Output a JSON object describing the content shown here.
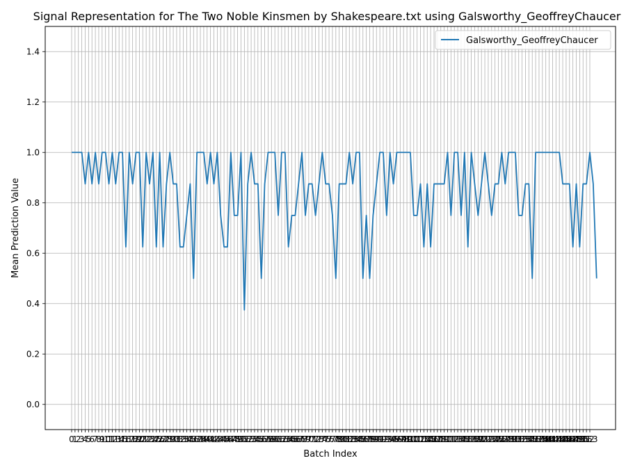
{
  "chart_data": {
    "type": "line",
    "title": "Signal Representation for The Two Noble Kinsmen by Shakespeare.txt using Galsworthy_GeoffreyChaucer",
    "xlabel": "Batch Index",
    "ylabel": "Mean Prediction Value",
    "ylim": [
      -0.1,
      1.5
    ],
    "yticks": [
      0.0,
      0.2,
      0.4,
      0.6,
      0.8,
      1.0,
      1.2,
      1.4
    ],
    "ytick_labels": [
      "0.0",
      "0.2",
      "0.4",
      "0.6",
      "0.8",
      "1.0",
      "1.2",
      "1.4"
    ],
    "x_start": 0,
    "x_end": 153,
    "grid": true,
    "legend": {
      "position": "top-right"
    },
    "series": [
      {
        "name": "Galsworthy_GeoffreyChaucer",
        "color": "#1f77b4",
        "values": [
          1.0,
          1.0,
          1.0,
          1.0,
          0.875,
          1.0,
          0.875,
          1.0,
          0.875,
          1.0,
          1.0,
          0.875,
          1.0,
          0.875,
          1.0,
          1.0,
          0.625,
          1.0,
          0.875,
          1.0,
          1.0,
          0.625,
          1.0,
          0.875,
          1.0,
          0.625,
          1.0,
          0.625,
          0.875,
          1.0,
          0.875,
          0.875,
          0.625,
          0.625,
          0.75,
          0.875,
          0.5,
          1.0,
          1.0,
          1.0,
          0.875,
          1.0,
          0.875,
          1.0,
          0.75,
          0.625,
          0.625,
          1.0,
          0.75,
          0.75,
          1.0,
          0.375,
          0.875,
          1.0,
          0.875,
          0.875,
          0.5,
          0.875,
          1.0,
          1.0,
          1.0,
          0.75,
          1.0,
          1.0,
          0.625,
          0.75,
          0.75,
          0.875,
          1.0,
          0.75,
          0.875,
          0.875,
          0.75,
          0.875,
          1.0,
          0.875,
          0.875,
          0.75,
          0.5,
          0.875,
          0.875,
          0.875,
          1.0,
          0.875,
          1.0,
          1.0,
          0.5,
          0.75,
          0.5,
          0.75,
          0.875,
          1.0,
          1.0,
          0.75,
          1.0,
          0.875,
          1.0,
          1.0,
          1.0,
          1.0,
          1.0,
          0.75,
          0.75,
          0.875,
          0.625,
          0.875,
          0.625,
          0.875,
          0.875,
          0.875,
          0.875,
          1.0,
          0.75,
          1.0,
          1.0,
          0.75,
          1.0,
          0.625,
          1.0,
          0.875,
          0.75,
          0.875,
          1.0,
          0.875,
          0.75,
          0.875,
          0.875,
          1.0,
          0.875,
          1.0,
          1.0,
          1.0,
          0.75,
          0.75,
          0.875,
          0.875,
          0.5,
          1.0,
          1.0,
          1.0,
          1.0,
          1.0,
          1.0,
          1.0,
          1.0,
          0.875,
          0.875,
          0.875,
          0.625,
          0.875,
          0.625,
          0.875,
          0.875,
          1.0,
          0.875,
          0.5
        ]
      }
    ]
  }
}
